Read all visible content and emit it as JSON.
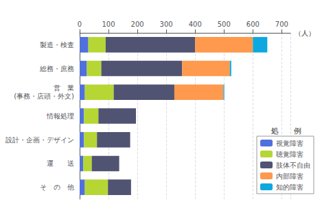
{
  "chart_data": {
    "type": "bar",
    "orientation": "horizontal",
    "stacked": true,
    "categories": [
      "製造・検査",
      "総務・庶務",
      "営　業\n(事務・店頭・外文)",
      "情報処理",
      "設計・企画・デザイン",
      "運　　送",
      "そ　の　他"
    ],
    "series": [
      {
        "name": "視覚障害",
        "values": [
          30,
          25,
          18,
          15,
          15,
          12,
          18
        ]
      },
      {
        "name": "聴覚障害",
        "values": [
          60,
          50,
          100,
          50,
          45,
          30,
          80
        ]
      },
      {
        "name": "肢体不自由",
        "values": [
          310,
          280,
          210,
          130,
          115,
          95,
          80
        ]
      },
      {
        "name": "内部障害",
        "values": [
          200,
          165,
          170,
          0,
          0,
          0,
          0
        ]
      },
      {
        "name": "知的障害",
        "values": [
          50,
          5,
          3,
          0,
          0,
          0,
          0
        ]
      }
    ],
    "xlabel": "（人）",
    "legend_title": "処　　例",
    "xlim": [
      0,
      730
    ],
    "xticks": [
      0,
      100,
      200,
      300,
      400,
      500,
      600,
      700
    ],
    "grid": true,
    "legend": "right"
  }
}
